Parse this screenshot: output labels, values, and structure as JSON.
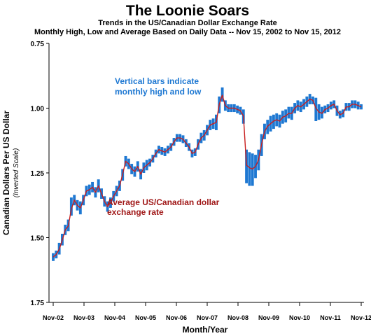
{
  "chart_data": {
    "type": "line",
    "title": "The Loonie Soars",
    "subtitle_1": "Trends in the US/Canadian Dollar Exchange Rate",
    "subtitle_2": "Monthly High, Low and Average Based on Daily Data -- Nov 15, 2002 to Nov 15, 2012",
    "xlabel": "Month/Year",
    "ylabel": "Canadian Dollars Per US Dollar",
    "ylabel_note": "(Inverted Scale)",
    "y_inverted": true,
    "ylim": [
      0.75,
      1.75
    ],
    "yticks": [
      "0.75",
      "1.00",
      "1.25",
      "1.50",
      "1.75"
    ],
    "xticks": [
      "Nov-02",
      "Nov-03",
      "Nov-04",
      "Nov-05",
      "Nov-06",
      "Nov-07",
      "Nov-08",
      "Nov-09",
      "Nov-10",
      "Nov-11",
      "Nov-12"
    ],
    "grid": false,
    "colors": {
      "range_bars": "#1e78d2",
      "average_line": "#c81e1e"
    },
    "annotations": [
      {
        "text_lines": [
          "Vertical bars indicate",
          "monthly high and low"
        ],
        "color": "#1e78d2"
      },
      {
        "text_lines": [
          "Average US/Canadian dollar",
          "exchange rate"
        ],
        "color": "#a01818"
      }
    ],
    "series": [
      {
        "name": "Monthly average",
        "values": [
          1.575,
          1.565,
          1.545,
          1.51,
          1.47,
          1.455,
          1.39,
          1.355,
          1.375,
          1.385,
          1.355,
          1.32,
          1.315,
          1.305,
          1.325,
          1.3,
          1.33,
          1.36,
          1.38,
          1.365,
          1.34,
          1.32,
          1.3,
          1.255,
          1.205,
          1.215,
          1.235,
          1.245,
          1.225,
          1.255,
          1.23,
          1.22,
          1.21,
          1.195,
          1.175,
          1.16,
          1.165,
          1.17,
          1.16,
          1.15,
          1.13,
          1.115,
          1.115,
          1.12,
          1.135,
          1.15,
          1.175,
          1.17,
          1.14,
          1.115,
          1.105,
          1.085,
          1.065,
          1.06,
          1.055,
          0.985,
          0.95,
          0.99,
          1.0,
          1.0,
          1.0,
          1.005,
          1.01,
          1.03,
          1.22,
          1.23,
          1.235,
          1.225,
          1.2,
          1.14,
          1.09,
          1.07,
          1.06,
          1.05,
          1.045,
          1.05,
          1.035,
          1.03,
          1.02,
          1.02,
          1.0,
          0.99,
          0.995,
          0.985,
          0.975,
          0.965,
          0.97,
          1.0,
          1.015,
          1.02,
          1.005,
          1.0,
          0.99,
          0.985,
          1.01,
          1.025,
          1.02,
          0.995,
          0.995,
          0.985,
          0.985,
          0.99,
          0.995
        ]
      },
      {
        "name": "Monthly high",
        "values": [
          1.59,
          1.58,
          1.565,
          1.53,
          1.49,
          1.475,
          1.415,
          1.375,
          1.395,
          1.41,
          1.375,
          1.34,
          1.335,
          1.325,
          1.345,
          1.325,
          1.35,
          1.38,
          1.4,
          1.385,
          1.36,
          1.34,
          1.32,
          1.28,
          1.225,
          1.235,
          1.255,
          1.265,
          1.245,
          1.275,
          1.25,
          1.24,
          1.225,
          1.21,
          1.19,
          1.175,
          1.18,
          1.185,
          1.175,
          1.165,
          1.145,
          1.13,
          1.13,
          1.135,
          1.15,
          1.165,
          1.19,
          1.185,
          1.16,
          1.135,
          1.125,
          1.105,
          1.085,
          1.08,
          1.085,
          1.02,
          0.975,
          1.01,
          1.015,
          1.015,
          1.015,
          1.02,
          1.025,
          1.06,
          1.29,
          1.3,
          1.3,
          1.27,
          1.24,
          1.185,
          1.12,
          1.1,
          1.09,
          1.08,
          1.07,
          1.075,
          1.06,
          1.055,
          1.04,
          1.045,
          1.02,
          1.01,
          1.015,
          1.005,
          0.995,
          0.985,
          0.985,
          1.05,
          1.045,
          1.04,
          1.02,
          1.015,
          1.005,
          1.0,
          1.03,
          1.04,
          1.035,
          1.01,
          1.01,
          1.0,
          1.0,
          1.005,
          1.005
        ]
      },
      {
        "name": "Monthly low",
        "values": [
          1.56,
          1.55,
          1.52,
          1.485,
          1.45,
          1.43,
          1.345,
          1.335,
          1.355,
          1.36,
          1.335,
          1.3,
          1.295,
          1.285,
          1.305,
          1.275,
          1.31,
          1.34,
          1.36,
          1.345,
          1.32,
          1.3,
          1.28,
          1.235,
          1.185,
          1.195,
          1.215,
          1.225,
          1.205,
          1.235,
          1.21,
          1.2,
          1.195,
          1.18,
          1.16,
          1.145,
          1.15,
          1.155,
          1.145,
          1.135,
          1.115,
          1.1,
          1.1,
          1.105,
          1.12,
          1.135,
          1.16,
          1.155,
          1.12,
          1.095,
          1.085,
          1.065,
          1.045,
          1.04,
          1.025,
          0.955,
          0.92,
          0.97,
          0.985,
          0.985,
          0.985,
          0.99,
          0.995,
          1.005,
          1.16,
          1.17,
          1.175,
          1.18,
          1.16,
          1.1,
          1.06,
          1.045,
          1.03,
          1.025,
          1.02,
          1.025,
          1.01,
          1.005,
          0.995,
          0.995,
          0.98,
          0.97,
          0.975,
          0.965,
          0.955,
          0.945,
          0.955,
          0.96,
          0.985,
          0.995,
          0.99,
          0.985,
          0.975,
          0.97,
          0.99,
          1.01,
          1.005,
          0.98,
          0.98,
          0.97,
          0.97,
          0.975,
          0.985
        ]
      }
    ]
  }
}
